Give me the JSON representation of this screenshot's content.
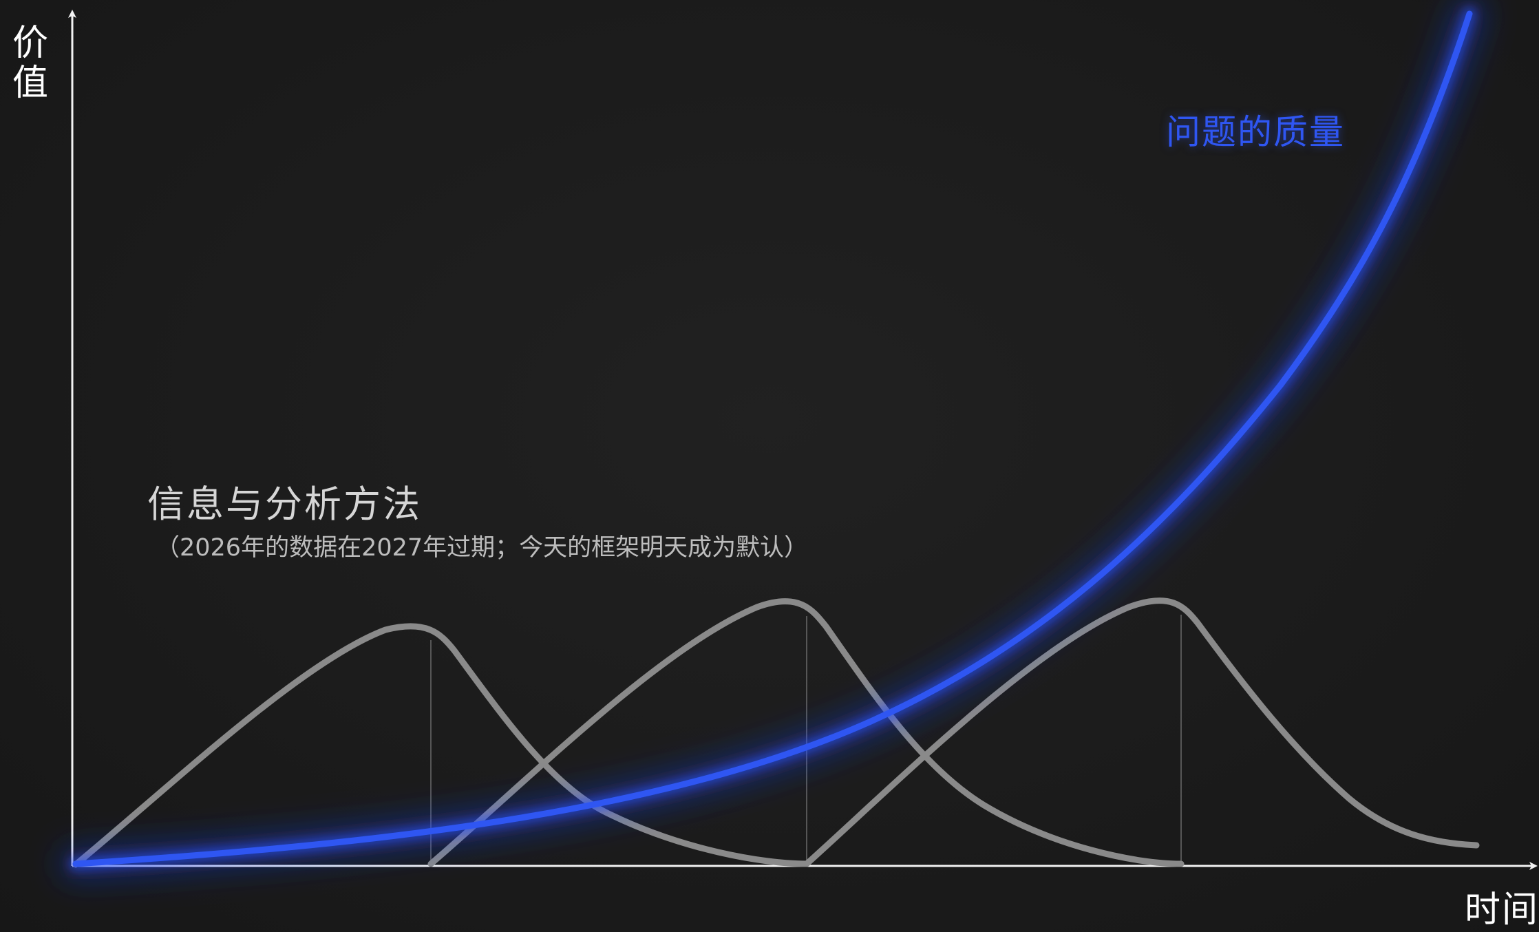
{
  "axes": {
    "y_label_chars": [
      "价",
      "值"
    ],
    "x_label": "时间"
  },
  "curves": {
    "growth_label": "问题的质量",
    "growth_color": "#2f56f2",
    "wave_color": "#8a8a8a",
    "wave_count": 3
  },
  "annotation": {
    "title": "信息与分析方法",
    "subtitle": "（2026年的数据在2027年过期；今天的框架明天成为默认）"
  }
}
